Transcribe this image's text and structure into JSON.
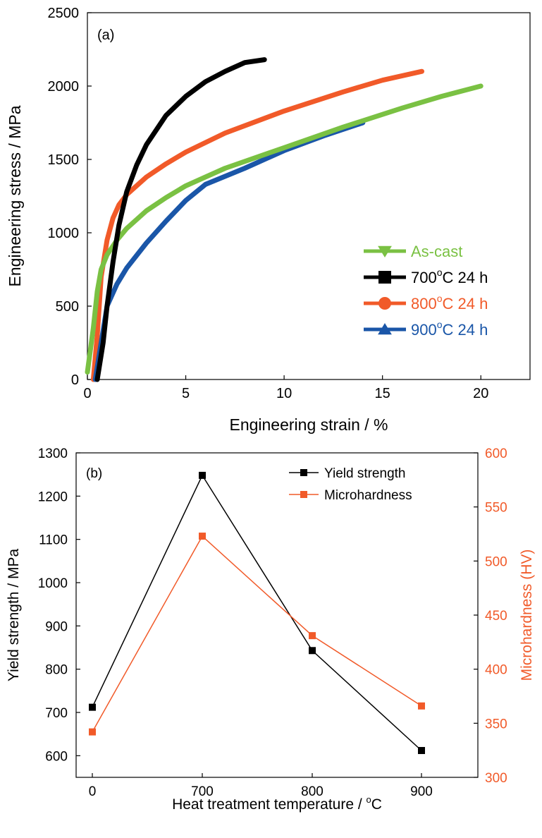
{
  "chart_data": [
    {
      "type": "line",
      "panel_label": "(a)",
      "xlabel": "Engineering strain / %",
      "ylabel": "Engineering stress / MPa",
      "xlim": [
        0,
        22.5
      ],
      "ylim": [
        0,
        2500
      ],
      "xticks": [
        0,
        5,
        10,
        15,
        20
      ],
      "yticks": [
        0,
        500,
        1000,
        1500,
        2000,
        2500
      ],
      "legend_position": "lower-right",
      "series": [
        {
          "name": "As-cast",
          "name_main": "As-cast",
          "name_sup": "",
          "name_tail": "",
          "color": "#7ac143",
          "marker": "triangle-down",
          "x": [
            0,
            0.3,
            0.5,
            0.7,
            1.0,
            1.5,
            2.0,
            3.0,
            4.0,
            5.0,
            7.0,
            10.0,
            13.0,
            16.0,
            18.0,
            20.0
          ],
          "y": [
            50,
            350,
            600,
            750,
            850,
            950,
            1030,
            1150,
            1240,
            1320,
            1440,
            1580,
            1720,
            1850,
            1930,
            2000
          ]
        },
        {
          "name": "700°C 24 h",
          "name_main": "700",
          "name_sup": "o",
          "name_tail": "C 24 h",
          "color": "#000000",
          "marker": "square",
          "x": [
            0.5,
            0.8,
            1.0,
            1.3,
            1.6,
            2.0,
            2.5,
            3.0,
            4.0,
            5.0,
            6.0,
            7.0,
            8.0,
            9.0
          ],
          "y": [
            0,
            250,
            500,
            800,
            1050,
            1280,
            1460,
            1600,
            1800,
            1930,
            2030,
            2100,
            2160,
            2180
          ]
        },
        {
          "name": "800°C 24 h",
          "name_main": "800",
          "name_sup": "o",
          "name_tail": "C 24 h",
          "color": "#f15a29",
          "marker": "circle",
          "x": [
            0.3,
            0.5,
            0.7,
            1.0,
            1.3,
            1.6,
            2.0,
            3.0,
            4.0,
            5.0,
            7.0,
            10.0,
            13.0,
            15.0,
            17.0
          ],
          "y": [
            0,
            300,
            700,
            950,
            1100,
            1190,
            1260,
            1380,
            1470,
            1550,
            1680,
            1830,
            1960,
            2040,
            2100
          ]
        },
        {
          "name": "900°C 24 h",
          "name_main": "900",
          "name_sup": "o",
          "name_tail": "C 24 h",
          "color": "#1a56a8",
          "marker": "triangle-up",
          "x": [
            0.4,
            0.7,
            1.0,
            1.5,
            2.0,
            3.0,
            4.0,
            5.0,
            6.0,
            8.0,
            10.0,
            12.0,
            14.0
          ],
          "y": [
            0,
            250,
            500,
            650,
            760,
            930,
            1080,
            1220,
            1330,
            1440,
            1560,
            1660,
            1750
          ]
        }
      ]
    },
    {
      "type": "line",
      "panel_label": "(b)",
      "xlabel": "Heat treatment temperature / ",
      "xlabel_sup": "o",
      "xlabel_tail": "C",
      "ylabel": "Yield strength / MPa",
      "y2label": "Microhardness (HV)",
      "categories": [
        "0",
        "700",
        "800",
        "900"
      ],
      "ylim": [
        550,
        1300
      ],
      "yticks": [
        600,
        700,
        800,
        900,
        1000,
        1100,
        1200,
        1300
      ],
      "y2lim": [
        300,
        600
      ],
      "y2ticks": [
        300,
        350,
        400,
        450,
        500,
        550,
        600
      ],
      "legend_position": "top-right",
      "series": [
        {
          "name": "Yield strength",
          "axis": "left",
          "color": "#000000",
          "marker": "square",
          "values": [
            712,
            1248,
            843,
            612
          ]
        },
        {
          "name": "Microhardness",
          "axis": "right",
          "color": "#f15a29",
          "marker": "square",
          "values": [
            342,
            523,
            431,
            366
          ]
        }
      ]
    }
  ]
}
